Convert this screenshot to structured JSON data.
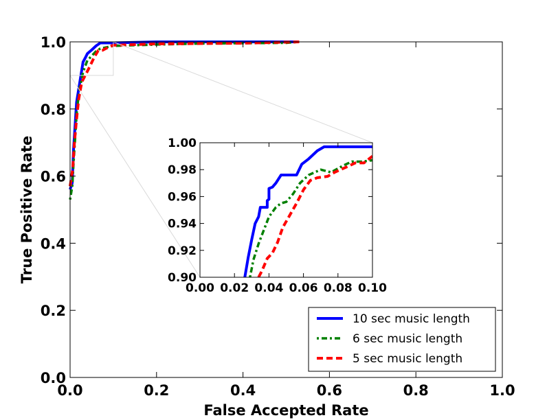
{
  "chart_data": {
    "type": "line",
    "xlabel": "False Accepted Rate",
    "ylabel": "True Positive Rate",
    "xlim": [
      0.0,
      1.0
    ],
    "ylim": [
      0.0,
      1.0
    ],
    "x_ticks": [
      "0.0",
      "0.2",
      "0.4",
      "0.6",
      "0.8",
      "1.0"
    ],
    "y_ticks": [
      "0.0",
      "0.2",
      "0.4",
      "0.6",
      "0.8",
      "1.0"
    ],
    "grid": false,
    "legend_position": "lower-right",
    "series": [
      {
        "name": "10 sec music length",
        "color": "#0000ff",
        "style": "solid",
        "points": [
          [
            0.0,
            0.56
          ],
          [
            0.005,
            0.58
          ],
          [
            0.008,
            0.68
          ],
          [
            0.012,
            0.76
          ],
          [
            0.015,
            0.82
          ],
          [
            0.02,
            0.86
          ],
          [
            0.025,
            0.9
          ],
          [
            0.03,
            0.94
          ],
          [
            0.035,
            0.952
          ],
          [
            0.04,
            0.965
          ],
          [
            0.05,
            0.976
          ],
          [
            0.06,
            0.988
          ],
          [
            0.07,
            0.997
          ],
          [
            0.1,
            0.997
          ],
          [
            0.2,
            1.0
          ],
          [
            0.53,
            1.0
          ]
        ]
      },
      {
        "name": "6 sec music length",
        "color": "#008000",
        "style": "dashdot",
        "points": [
          [
            0.0,
            0.53
          ],
          [
            0.005,
            0.57
          ],
          [
            0.008,
            0.64
          ],
          [
            0.012,
            0.72
          ],
          [
            0.016,
            0.8
          ],
          [
            0.022,
            0.86
          ],
          [
            0.03,
            0.91
          ],
          [
            0.04,
            0.945
          ],
          [
            0.05,
            0.958
          ],
          [
            0.06,
            0.972
          ],
          [
            0.07,
            0.98
          ],
          [
            0.1,
            0.988
          ],
          [
            0.2,
            0.992
          ],
          [
            0.3,
            0.995
          ],
          [
            0.5,
            0.997
          ],
          [
            0.53,
            1.0
          ]
        ]
      },
      {
        "name": "5 sec music length",
        "color": "#ff0000",
        "style": "dashed",
        "points": [
          [
            0.0,
            0.57
          ],
          [
            0.006,
            0.62
          ],
          [
            0.01,
            0.7
          ],
          [
            0.015,
            0.77
          ],
          [
            0.02,
            0.83
          ],
          [
            0.027,
            0.88
          ],
          [
            0.035,
            0.9
          ],
          [
            0.045,
            0.925
          ],
          [
            0.055,
            0.952
          ],
          [
            0.065,
            0.974
          ],
          [
            0.075,
            0.975
          ],
          [
            0.09,
            0.985
          ],
          [
            0.1,
            0.99
          ],
          [
            0.2,
            0.994
          ],
          [
            0.4,
            0.996
          ],
          [
            0.53,
            1.0
          ]
        ]
      }
    ],
    "inset": {
      "xlim": [
        0.0,
        0.1
      ],
      "ylim": [
        0.9,
        1.0
      ],
      "x_ticks": [
        "0.00",
        "0.02",
        "0.04",
        "0.06",
        "0.08",
        "0.10"
      ],
      "y_ticks": [
        "0.90",
        "0.92",
        "0.94",
        "0.96",
        "0.98",
        "1.00"
      ],
      "series": [
        {
          "name": "10 sec music length",
          "points": [
            [
              0.026,
              0.9
            ],
            [
              0.028,
              0.915
            ],
            [
              0.03,
              0.928
            ],
            [
              0.032,
              0.94
            ],
            [
              0.034,
              0.945
            ],
            [
              0.035,
              0.952
            ],
            [
              0.039,
              0.952
            ],
            [
              0.039,
              0.957
            ],
            [
              0.04,
              0.958
            ],
            [
              0.04,
              0.966
            ],
            [
              0.042,
              0.967
            ],
            [
              0.044,
              0.97
            ],
            [
              0.047,
              0.976
            ],
            [
              0.056,
              0.976
            ],
            [
              0.059,
              0.984
            ],
            [
              0.063,
              0.988
            ],
            [
              0.068,
              0.994
            ],
            [
              0.072,
              0.997
            ],
            [
              0.1,
              0.997
            ]
          ]
        },
        {
          "name": "6 sec music length",
          "points": [
            [
              0.029,
              0.9
            ],
            [
              0.031,
              0.913
            ],
            [
              0.034,
              0.925
            ],
            [
              0.037,
              0.935
            ],
            [
              0.04,
              0.945
            ],
            [
              0.044,
              0.952
            ],
            [
              0.047,
              0.955
            ],
            [
              0.05,
              0.956
            ],
            [
              0.054,
              0.962
            ],
            [
              0.058,
              0.97
            ],
            [
              0.063,
              0.976
            ],
            [
              0.07,
              0.98
            ],
            [
              0.076,
              0.978
            ],
            [
              0.083,
              0.983
            ],
            [
              0.088,
              0.986
            ],
            [
              0.094,
              0.986
            ],
            [
              0.1,
              0.987
            ]
          ]
        },
        {
          "name": "5 sec music length",
          "points": [
            [
              0.034,
              0.9
            ],
            [
              0.036,
              0.905
            ],
            [
              0.039,
              0.914
            ],
            [
              0.042,
              0.918
            ],
            [
              0.045,
              0.926
            ],
            [
              0.048,
              0.937
            ],
            [
              0.052,
              0.946
            ],
            [
              0.056,
              0.955
            ],
            [
              0.06,
              0.965
            ],
            [
              0.064,
              0.972
            ],
            [
              0.068,
              0.974
            ],
            [
              0.074,
              0.975
            ],
            [
              0.078,
              0.978
            ],
            [
              0.085,
              0.982
            ],
            [
              0.09,
              0.985
            ],
            [
              0.095,
              0.985
            ],
            [
              0.1,
              0.99
            ]
          ]
        }
      ]
    }
  }
}
